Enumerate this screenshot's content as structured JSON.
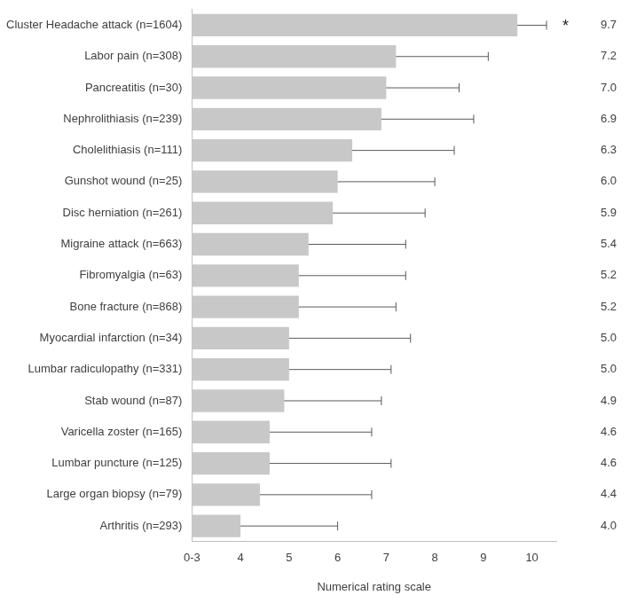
{
  "chart_data": {
    "type": "bar",
    "orientation": "horizontal",
    "categories": [
      "Cluster Headache attack (n=1604)",
      "Labor pain (n=308)",
      "Pancreatitis (n=30)",
      "Nephrolithiasis (n=239)",
      "Cholelithiasis (n=111)",
      "Gunshot wound (n=25)",
      "Disc herniation (n=261)",
      "Migraine attack (n=663)",
      "Fibromyalgia (n=63)",
      "Bone fracture (n=868)",
      "Myocardial infarction (n=34)",
      "Lumbar radiculopathy (n=331)",
      "Stab wound (n=87)",
      "Varicella zoster (n=165)",
      "Lumbar puncture (n=125)",
      "Large organ biopsy (n=79)",
      "Arthritis (n=293)"
    ],
    "values": [
      9.7,
      7.2,
      7.0,
      6.9,
      6.3,
      6.0,
      5.9,
      5.4,
      5.2,
      5.2,
      5.0,
      5.0,
      4.9,
      4.6,
      4.6,
      4.4,
      4.0
    ],
    "value_labels": [
      "9.7",
      "7.2",
      "7.0",
      "6.9",
      "6.3",
      "6.0",
      "5.9",
      "5.4",
      "5.2",
      "5.2",
      "5.0",
      "5.0",
      "4.9",
      "4.6",
      "4.6",
      "4.4",
      "4.0"
    ],
    "error": [
      0.6,
      1.9,
      1.5,
      1.9,
      2.1,
      2.0,
      1.9,
      2.0,
      2.2,
      2.0,
      2.5,
      2.1,
      2.0,
      2.1,
      2.5,
      2.3,
      2.0
    ],
    "color": "#c8c8c8",
    "xlim": [
      3,
      10.5
    ],
    "xticks": [
      {
        "value": 3,
        "label": "0-3"
      },
      4,
      5,
      6,
      7,
      8,
      9,
      10
    ],
    "x_label": "Numerical rating scale",
    "data_labels": true,
    "grid": false,
    "annotations": [
      {
        "category": "Cluster Headache attack (n=1604)",
        "text": "*"
      }
    ]
  }
}
